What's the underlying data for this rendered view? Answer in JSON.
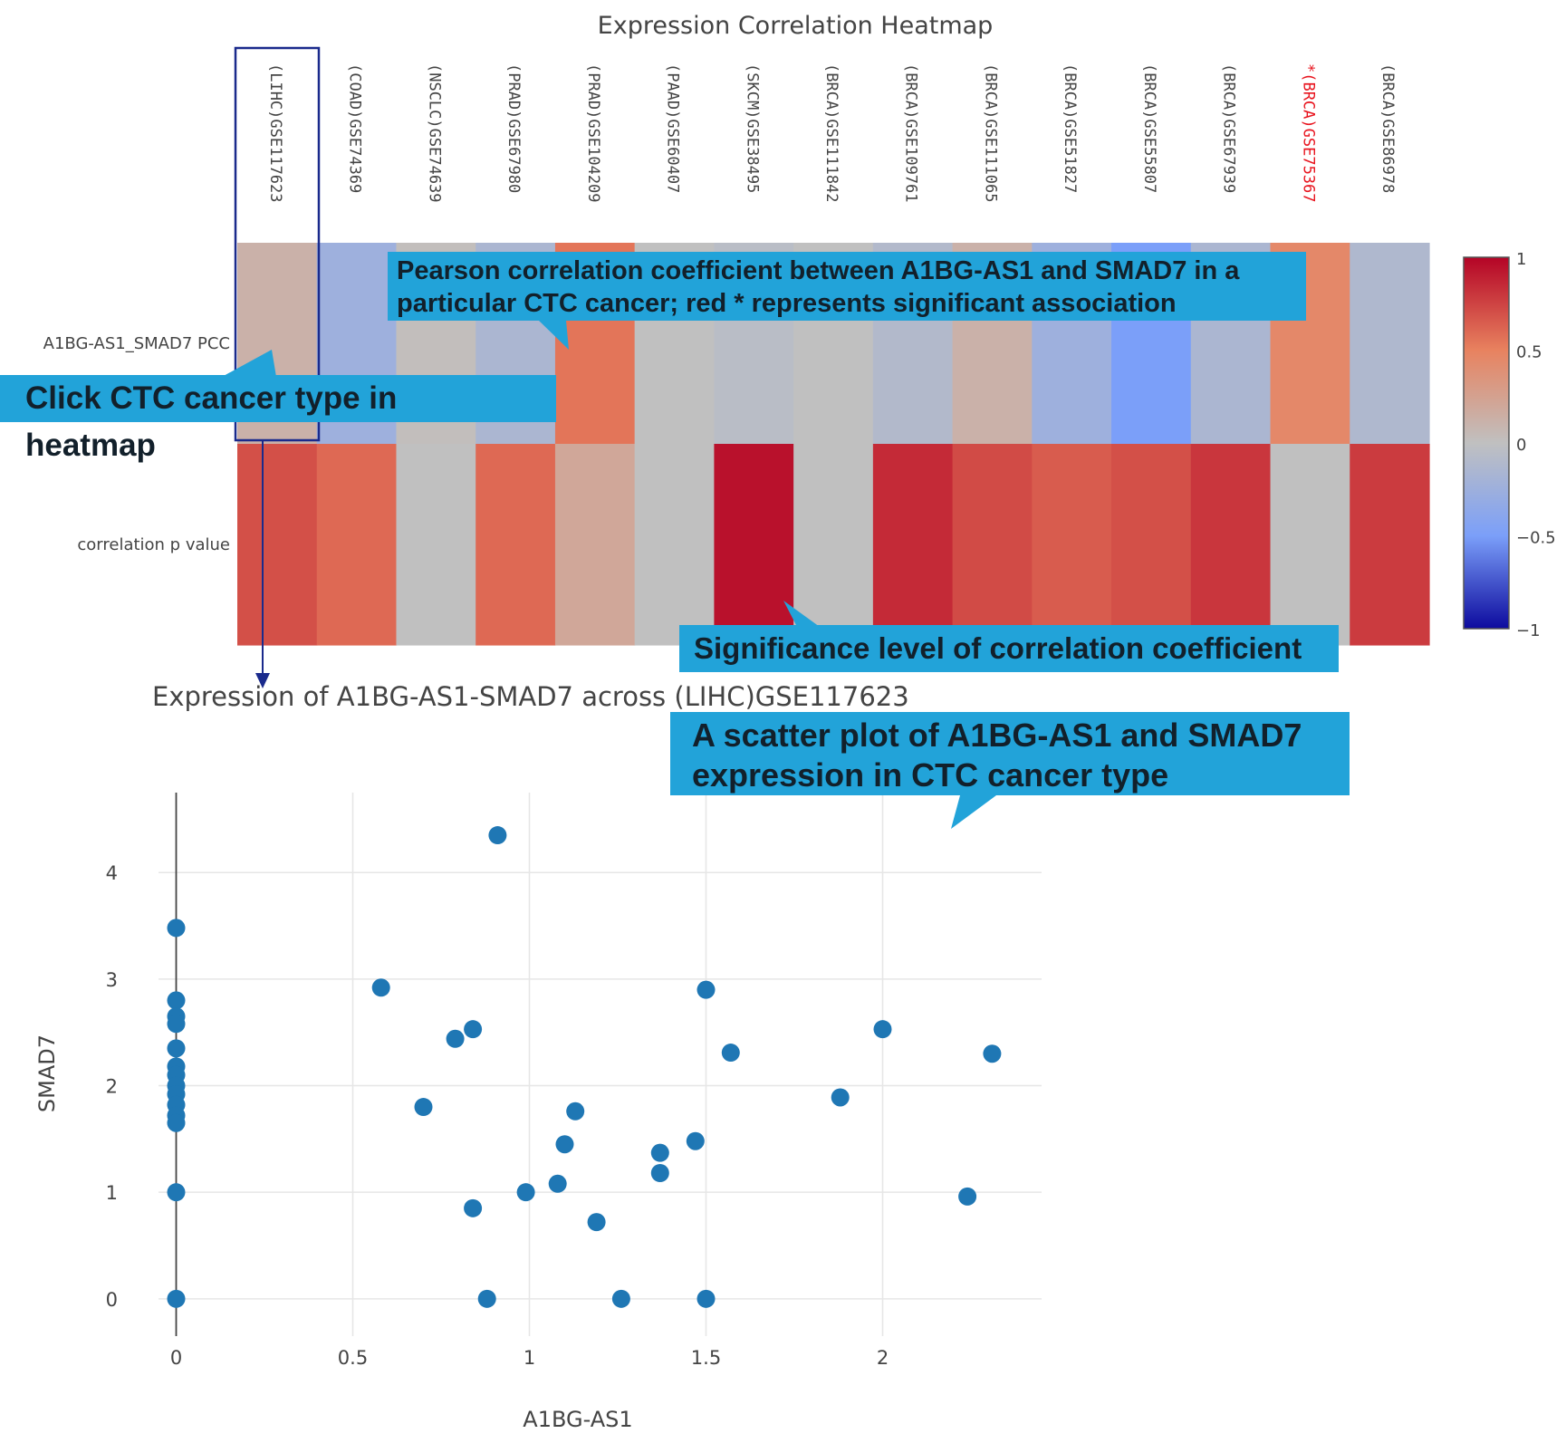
{
  "chart_data": [
    {
      "type": "heatmap",
      "title": "Expression Correlation Heatmap",
      "columns": [
        {
          "label": "(LIHC)GSE117623",
          "significant": false
        },
        {
          "label": "(COAD)GSE74369",
          "significant": false
        },
        {
          "label": "(NSCLC)GSE74639",
          "significant": false
        },
        {
          "label": "(PRAD)GSE67980",
          "significant": false
        },
        {
          "label": "(PRAD)GSE104209",
          "significant": false
        },
        {
          "label": "(PAAD)GSE60407",
          "significant": false
        },
        {
          "label": "(SKCM)GSE38495",
          "significant": false
        },
        {
          "label": "(BRCA)GSE111842",
          "significant": false
        },
        {
          "label": "(BRCA)GSE109761",
          "significant": false
        },
        {
          "label": "(BRCA)GSE111065",
          "significant": false
        },
        {
          "label": "(BRCA)GSE51827",
          "significant": false
        },
        {
          "label": "(BRCA)GSE55807",
          "significant": false
        },
        {
          "label": "(BRCA)GSE67939",
          "significant": false
        },
        {
          "label": "*(BRCA)GSE75367",
          "significant": true
        },
        {
          "label": "(BRCA)GSE86978",
          "significant": false
        }
      ],
      "rows": [
        "A1BG-AS1_SMAD7 PCC",
        "correlation p value"
      ],
      "values": [
        [
          0.12,
          -0.25,
          0.02,
          -0.15,
          0.55,
          0.0,
          -0.05,
          0.0,
          -0.1,
          0.12,
          -0.25,
          -0.5,
          -0.15,
          0.45,
          -0.12
        ],
        [
          0.7,
          0.6,
          0.0,
          0.6,
          0.2,
          0.0,
          0.95,
          0.0,
          0.85,
          0.72,
          0.65,
          0.7,
          0.8,
          0.0,
          0.78
        ]
      ],
      "colorscale": {
        "min": -1,
        "max": 1,
        "ticks": [
          1,
          0.5,
          0,
          -0.5,
          -1
        ],
        "tick_labels": [
          "1",
          "0.5",
          "0",
          "−0.5",
          "−1"
        ]
      }
    },
    {
      "type": "scatter",
      "title": "Expression of A1BG-AS1-SMAD7 across (LIHC)GSE117623",
      "xlabel": "A1BG-AS1",
      "ylabel": "SMAD7",
      "xlim": [
        -0.05,
        2.45
      ],
      "ylim": [
        -0.35,
        4.75
      ],
      "xticks": [
        0,
        0.5,
        1,
        1.5,
        2
      ],
      "xtick_labels": [
        "0",
        "0.5",
        "1",
        "1.5",
        "2"
      ],
      "yticks": [
        0,
        1,
        2,
        3,
        4
      ],
      "ytick_labels": [
        "0",
        "1",
        "2",
        "3",
        "4"
      ],
      "grid": true,
      "color": "#1f77b4",
      "points": [
        [
          0,
          3.48
        ],
        [
          0,
          2.8
        ],
        [
          0,
          2.65
        ],
        [
          0,
          2.58
        ],
        [
          0,
          2.35
        ],
        [
          0,
          2.18
        ],
        [
          0,
          2.1
        ],
        [
          0,
          2.0
        ],
        [
          0,
          1.92
        ],
        [
          0,
          1.82
        ],
        [
          0,
          1.72
        ],
        [
          0,
          1.65
        ],
        [
          0,
          1.0
        ],
        [
          0,
          0.0
        ],
        [
          0.91,
          4.35
        ],
        [
          0.58,
          2.92
        ],
        [
          0.84,
          2.53
        ],
        [
          0.79,
          2.44
        ],
        [
          0.7,
          1.8
        ],
        [
          1.5,
          2.9
        ],
        [
          1.57,
          2.31
        ],
        [
          2.0,
          2.53
        ],
        [
          2.31,
          2.3
        ],
        [
          1.88,
          1.89
        ],
        [
          1.13,
          1.76
        ],
        [
          1.1,
          1.45
        ],
        [
          1.47,
          1.48
        ],
        [
          1.37,
          1.37
        ],
        [
          1.37,
          1.18
        ],
        [
          1.08,
          1.08
        ],
        [
          0.99,
          1.0
        ],
        [
          0.84,
          0.85
        ],
        [
          1.19,
          0.72
        ],
        [
          2.24,
          0.96
        ],
        [
          0.88,
          0.0
        ],
        [
          1.26,
          0.0
        ],
        [
          1.5,
          0.0
        ]
      ]
    }
  ],
  "annotations": {
    "pcc": "Pearson correlation coefficient between A1BG-AS1 and SMAD7 in a particular CTC cancer; red * represents significant association",
    "click": "Click CTC cancer type in heatmap",
    "significance": "Significance level of correlation coefficient",
    "scatter": "A scatter plot of A1BG-AS1 and SMAD7 expression in CTC cancer type"
  }
}
